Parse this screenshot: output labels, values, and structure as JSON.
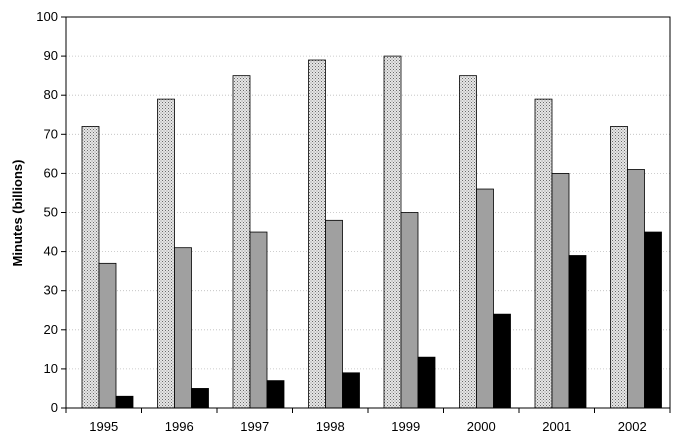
{
  "chart_data": {
    "type": "bar",
    "title": "",
    "xlabel": "",
    "ylabel": "Minutes (billions)",
    "ylim": [
      0,
      100
    ],
    "yticks": [
      0,
      10,
      20,
      30,
      40,
      50,
      60,
      70,
      80,
      90,
      100
    ],
    "grid": true,
    "legend": "none",
    "categories": [
      "1995",
      "1996",
      "1997",
      "1998",
      "1999",
      "2000",
      "2001",
      "2002"
    ],
    "series": [
      {
        "values": [
          72,
          79,
          85,
          89,
          90,
          85,
          79,
          72
        ],
        "fill": "dotted-light-gray"
      },
      {
        "values": [
          37,
          41,
          45,
          48,
          50,
          56,
          60,
          61
        ],
        "fill": "#a0a0a0"
      },
      {
        "values": [
          3,
          5,
          7,
          9,
          13,
          24,
          39,
          45
        ],
        "fill": "#000000"
      }
    ]
  }
}
